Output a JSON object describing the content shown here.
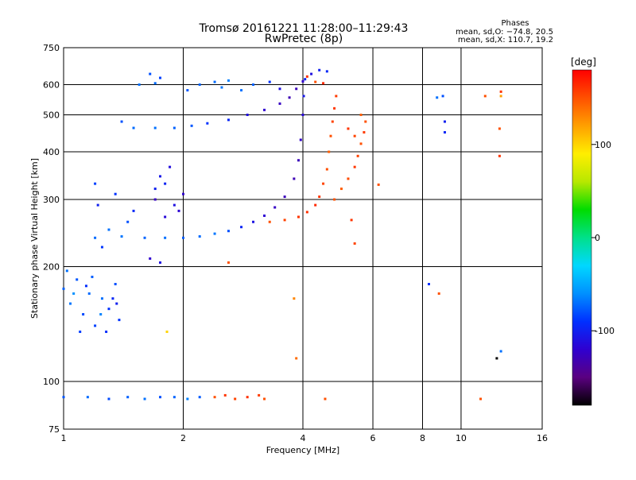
{
  "chart_data": {
    "type": "scatter",
    "title": "Tromsø 20161221 11:28:00–11:29:43",
    "subtitle": "RwPretec (8p)",
    "xlabel": "Frequency [MHz]",
    "ylabel": "Stationary phase Virtual Height [km]",
    "x_scale": "log",
    "y_scale": "log",
    "xlim": [
      1,
      16
    ],
    "ylim": [
      75,
      750
    ],
    "x_ticks": [
      1,
      2,
      4,
      6,
      8,
      10,
      16
    ],
    "y_ticks": [
      75,
      100,
      200,
      300,
      400,
      500,
      600,
      750
    ],
    "grid": true,
    "stats": {
      "heading": "Phases",
      "line_o": "mean, sd,O: −74.8, 20.5",
      "line_x": "mean, sd,X: 110.7, 19.2"
    },
    "colorbar": {
      "label": "[deg]",
      "range": [
        -180,
        180
      ],
      "ticks": [
        100,
        0,
        -100
      ],
      "colors": [
        "#000000",
        "#5a0080",
        "#2f00d0",
        "#0030ff",
        "#0090ff",
        "#00d8ff",
        "#00e08a",
        "#00dc00",
        "#b8e800",
        "#ffee00",
        "#ffa000",
        "#ff5000",
        "#ff0000"
      ]
    },
    "series": [
      {
        "points": [
          [
            1.0,
            175,
            -75
          ],
          [
            1.04,
            160,
            -68
          ],
          [
            1.08,
            185,
            -78
          ],
          [
            1.12,
            150,
            -82
          ],
          [
            1.16,
            170,
            -72
          ],
          [
            1.2,
            140,
            -85
          ],
          [
            1.25,
            165,
            -70
          ],
          [
            1.3,
            155,
            -90
          ],
          [
            1.35,
            180,
            -80
          ],
          [
            1.38,
            145,
            -88
          ],
          [
            1.02,
            195,
            -70
          ],
          [
            1.1,
            135,
            -86
          ],
          [
            1.28,
            135,
            -92
          ],
          [
            1.33,
            165,
            -95
          ],
          [
            1.06,
            170,
            -60
          ],
          [
            1.18,
            188,
            -76
          ],
          [
            1.36,
            160,
            -100
          ],
          [
            1.24,
            150,
            -64
          ],
          [
            1.14,
            178,
            -92
          ]
        ]
      },
      {
        "points": [
          [
            1.0,
            91,
            -78
          ],
          [
            1.15,
            91,
            -72
          ],
          [
            1.3,
            90,
            -82
          ],
          [
            1.45,
            91,
            -75
          ],
          [
            1.6,
            90,
            -70
          ],
          [
            1.75,
            91,
            -80
          ],
          [
            1.9,
            91,
            -74
          ],
          [
            2.05,
            90,
            -65
          ],
          [
            2.2,
            91,
            -77
          ],
          [
            2.4,
            91,
            150
          ],
          [
            2.55,
            92,
            160
          ],
          [
            2.7,
            90,
            155
          ],
          [
            2.9,
            91,
            162
          ],
          [
            3.1,
            92,
            158
          ],
          [
            3.2,
            90,
            150
          ]
        ]
      },
      {
        "points": [
          [
            1.2,
            238,
            -72
          ],
          [
            1.4,
            240,
            -68
          ],
          [
            1.6,
            238,
            -74
          ],
          [
            1.8,
            238,
            -70
          ],
          [
            2.0,
            238,
            -76
          ],
          [
            2.2,
            240,
            -72
          ],
          [
            2.4,
            244,
            -68
          ],
          [
            2.6,
            248,
            -80
          ],
          [
            2.8,
            254,
            -96
          ],
          [
            3.0,
            262,
            -108
          ],
          [
            3.2,
            272,
            -118
          ],
          [
            3.4,
            286,
            -124
          ],
          [
            3.6,
            305,
            -128
          ],
          [
            3.8,
            340,
            -130
          ],
          [
            3.9,
            380,
            -128
          ],
          [
            3.95,
            430,
            -122
          ],
          [
            4.0,
            500,
            -115
          ],
          [
            4.02,
            560,
            -105
          ],
          [
            4.05,
            620,
            -98
          ]
        ]
      },
      {
        "points": [
          [
            1.3,
            250,
            -70
          ],
          [
            1.45,
            262,
            -80
          ],
          [
            1.25,
            225,
            -88
          ],
          [
            1.5,
            280,
            -95
          ],
          [
            1.7,
            300,
            -125
          ],
          [
            1.8,
            270,
            -115
          ],
          [
            1.9,
            290,
            -110
          ],
          [
            2.0,
            310,
            -120
          ],
          [
            1.75,
            345,
            -105
          ],
          [
            1.85,
            365,
            -112
          ],
          [
            1.7,
            320,
            -100
          ],
          [
            1.95,
            280,
            -118
          ],
          [
            1.8,
            330,
            -98
          ],
          [
            1.22,
            290,
            -100
          ],
          [
            1.35,
            310,
            -90
          ],
          [
            1.2,
            330,
            -85
          ],
          [
            1.65,
            210,
            -120
          ],
          [
            1.75,
            205,
            -110
          ]
        ]
      },
      {
        "points": [
          [
            1.5,
            462,
            -72
          ],
          [
            1.7,
            462,
            -70
          ],
          [
            1.9,
            462,
            -75
          ],
          [
            2.1,
            468,
            -78
          ],
          [
            2.3,
            475,
            -90
          ],
          [
            2.6,
            485,
            -96
          ],
          [
            2.9,
            500,
            -110
          ],
          [
            3.2,
            515,
            -120
          ],
          [
            3.5,
            535,
            -125
          ],
          [
            3.7,
            555,
            -130
          ],
          [
            3.85,
            585,
            -128
          ],
          [
            4.0,
            612,
            -120
          ],
          [
            4.2,
            640,
            -110
          ],
          [
            4.4,
            655,
            -100
          ],
          [
            4.6,
            650,
            -95
          ],
          [
            1.4,
            480,
            -80
          ]
        ]
      },
      {
        "points": [
          [
            1.55,
            600,
            -70
          ],
          [
            1.65,
            640,
            -80
          ],
          [
            1.7,
            605,
            -72
          ],
          [
            1.75,
            625,
            -85
          ],
          [
            2.05,
            580,
            -78
          ],
          [
            2.2,
            600,
            -74
          ],
          [
            2.4,
            610,
            -72
          ],
          [
            2.5,
            590,
            -68
          ],
          [
            2.6,
            615,
            -65
          ],
          [
            2.8,
            580,
            -70
          ],
          [
            3.0,
            600,
            -75
          ],
          [
            3.3,
            610,
            -90
          ],
          [
            3.5,
            585,
            -110
          ],
          [
            4.1,
            630,
            160
          ],
          [
            4.3,
            610,
            150
          ],
          [
            4.5,
            605,
            165
          ]
        ]
      },
      {
        "points": [
          [
            3.3,
            262,
            150
          ],
          [
            3.6,
            265,
            155
          ],
          [
            3.9,
            270,
            160
          ],
          [
            4.1,
            278,
            162
          ],
          [
            4.3,
            290,
            165
          ],
          [
            4.4,
            305,
            160
          ],
          [
            4.5,
            330,
            155
          ],
          [
            4.6,
            360,
            150
          ],
          [
            4.65,
            400,
            145
          ],
          [
            4.7,
            440,
            150
          ],
          [
            4.75,
            480,
            155
          ],
          [
            4.8,
            520,
            160
          ],
          [
            4.85,
            560,
            158
          ]
        ]
      },
      {
        "points": [
          [
            4.8,
            300,
            150
          ],
          [
            5.0,
            320,
            145
          ],
          [
            5.2,
            340,
            152
          ],
          [
            5.4,
            365,
            160
          ],
          [
            5.5,
            390,
            155
          ],
          [
            5.6,
            420,
            150
          ],
          [
            5.7,
            450,
            158
          ],
          [
            5.75,
            480,
            150
          ],
          [
            5.6,
            500,
            145
          ],
          [
            5.2,
            460,
            160
          ],
          [
            5.4,
            440,
            155
          ]
        ]
      },
      {
        "points": [
          [
            1.82,
            135,
            100
          ],
          [
            2.6,
            205,
            150
          ],
          [
            3.8,
            165,
            130
          ],
          [
            3.85,
            115,
            140
          ],
          [
            4.55,
            90,
            150
          ],
          [
            5.3,
            265,
            160
          ],
          [
            5.4,
            230,
            155
          ],
          [
            6.2,
            328,
            150
          ],
          [
            8.3,
            180,
            -90
          ],
          [
            8.8,
            170,
            150
          ],
          [
            8.7,
            555,
            -70
          ],
          [
            9.0,
            560,
            -80
          ],
          [
            9.1,
            480,
            -100
          ],
          [
            9.1,
            450,
            -95
          ],
          [
            11.5,
            560,
            150
          ],
          [
            11.2,
            90,
            150
          ],
          [
            12.6,
            575,
            160
          ],
          [
            12.6,
            560,
            120
          ],
          [
            12.5,
            460,
            150
          ],
          [
            12.5,
            390,
            160
          ],
          [
            12.6,
            120,
            -70
          ],
          [
            12.3,
            115,
            -180
          ]
        ]
      }
    ]
  }
}
